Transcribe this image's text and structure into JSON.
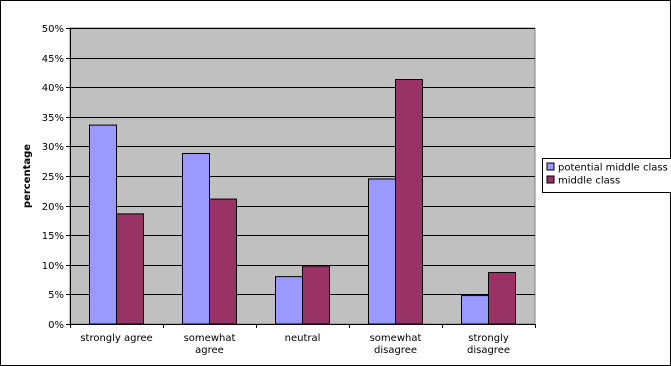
{
  "chart_data": {
    "type": "bar",
    "title": "",
    "xlabel": "",
    "ylabel": "percentage",
    "ylim": [
      0,
      50
    ],
    "y_tick_step": 5,
    "y_tick_suffix": "%",
    "grid": true,
    "legend_position": "right",
    "plot_background": "#C0C0C0",
    "categories": [
      [
        "strongly agree"
      ],
      [
        "somewhat",
        "agree"
      ],
      [
        "neutral"
      ],
      [
        "somewhat",
        "disagree"
      ],
      [
        "strongly",
        "disagree"
      ]
    ],
    "series": [
      {
        "name": "potential middle class",
        "color": "#9999FF",
        "values": [
          33.6,
          28.8,
          8.0,
          24.5,
          4.8
        ]
      },
      {
        "name": "middle class",
        "color": "#993366",
        "values": [
          18.6,
          21.1,
          9.8,
          41.3,
          8.7
        ]
      }
    ]
  }
}
